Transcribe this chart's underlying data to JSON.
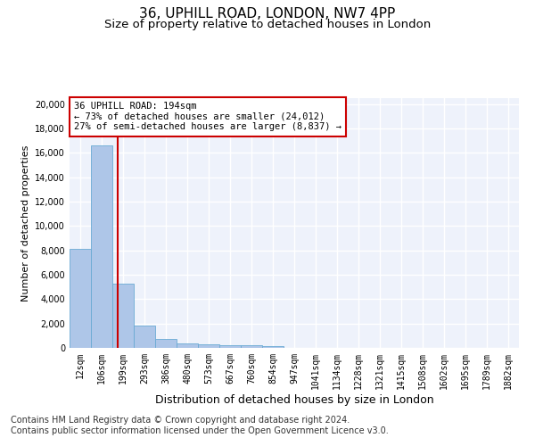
{
  "title1": "36, UPHILL ROAD, LONDON, NW7 4PP",
  "title2": "Size of property relative to detached houses in London",
  "xlabel": "Distribution of detached houses by size in London",
  "ylabel": "Number of detached properties",
  "categories": [
    "12sqm",
    "106sqm",
    "199sqm",
    "293sqm",
    "386sqm",
    "480sqm",
    "573sqm",
    "667sqm",
    "760sqm",
    "854sqm",
    "947sqm",
    "1041sqm",
    "1134sqm",
    "1228sqm",
    "1321sqm",
    "1415sqm",
    "1508sqm",
    "1602sqm",
    "1695sqm",
    "1789sqm",
    "1882sqm"
  ],
  "values": [
    8100,
    16600,
    5300,
    1850,
    700,
    370,
    270,
    220,
    190,
    170,
    0,
    0,
    0,
    0,
    0,
    0,
    0,
    0,
    0,
    0,
    0
  ],
  "bar_color": "#aec6e8",
  "bar_edge_color": "#6aaad4",
  "vline_x": 1.73,
  "vline_color": "#cc0000",
  "annotation_text": "36 UPHILL ROAD: 194sqm\n← 73% of detached houses are smaller (24,012)\n27% of semi-detached houses are larger (8,837) →",
  "annotation_box_color": "#cc0000",
  "footer_text": "Contains HM Land Registry data © Crown copyright and database right 2024.\nContains public sector information licensed under the Open Government Licence v3.0.",
  "ylim": [
    0,
    20500
  ],
  "yticks": [
    0,
    2000,
    4000,
    6000,
    8000,
    10000,
    12000,
    14000,
    16000,
    18000,
    20000
  ],
  "background_color": "#eef2fb",
  "grid_color": "#ffffff",
  "title1_fontsize": 11,
  "title2_fontsize": 9.5,
  "xlabel_fontsize": 9,
  "ylabel_fontsize": 8,
  "tick_fontsize": 7,
  "footer_fontsize": 7,
  "annotation_fontsize": 7.5
}
